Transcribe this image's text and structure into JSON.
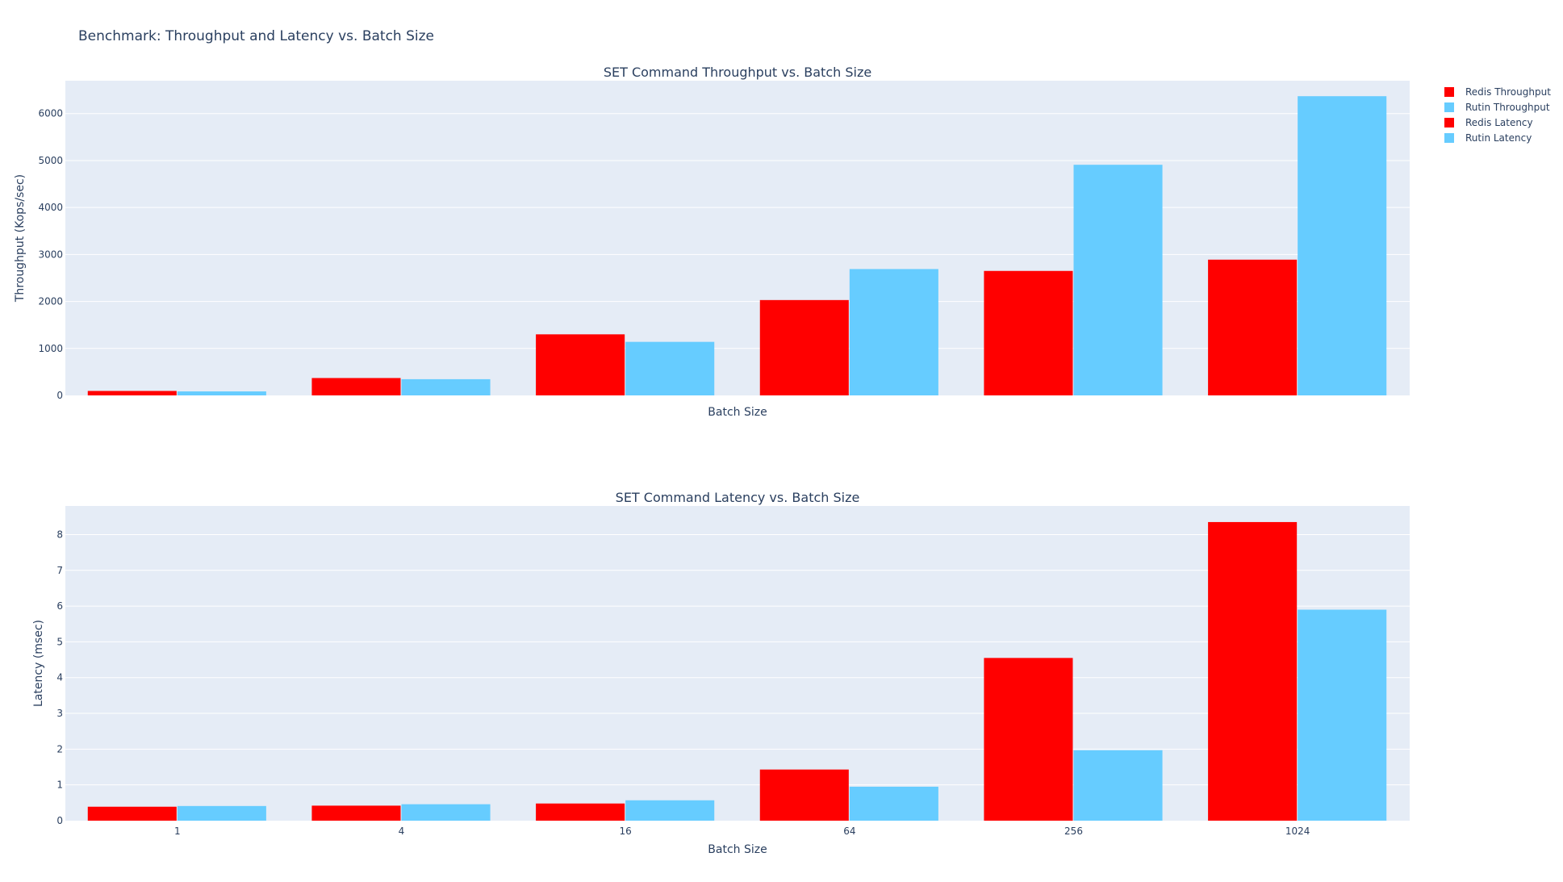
{
  "title": "Benchmark: Throughput and Latency vs. Batch Size",
  "legend": {
    "placement": "top-right",
    "items": [
      {
        "label": "Redis Throughput",
        "color": "#ff0000"
      },
      {
        "label": "Rutin Throughput",
        "color": "#66ccff"
      },
      {
        "label": "Redis Latency",
        "color": "#ff0000"
      },
      {
        "label": "Rutin Latency",
        "color": "#66ccff"
      }
    ]
  },
  "colors": {
    "plot_bg": "#e5ecf6",
    "grid": "#ffffff",
    "text": "#2a3f5f"
  },
  "chart_data": [
    {
      "type": "bar",
      "title": "SET Command Throughput vs. Batch Size",
      "xlabel": "Batch Size",
      "ylabel": "Throughput (Kops/sec)",
      "categories": [
        "1",
        "4",
        "16",
        "64",
        "256",
        "1024"
      ],
      "show_category_labels": false,
      "ylim": [
        0,
        6700
      ],
      "yticks": [
        0,
        1000,
        2000,
        3000,
        4000,
        5000,
        6000
      ],
      "grid": true,
      "series": [
        {
          "name": "Redis Throughput",
          "color": "#ff0000",
          "values": [
            95,
            370,
            1300,
            2030,
            2650,
            2890
          ]
        },
        {
          "name": "Rutin Throughput",
          "color": "#66ccff",
          "values": [
            85,
            345,
            1140,
            2690,
            4910,
            6370
          ]
        }
      ]
    },
    {
      "type": "bar",
      "title": "SET Command Latency vs. Batch Size",
      "xlabel": "Batch Size",
      "ylabel": "Latency (msec)",
      "categories": [
        "1",
        "4",
        "16",
        "64",
        "256",
        "1024"
      ],
      "show_category_labels": true,
      "ylim": [
        0,
        8.8
      ],
      "yticks": [
        0,
        1,
        2,
        3,
        4,
        5,
        6,
        7,
        8
      ],
      "grid": true,
      "series": [
        {
          "name": "Redis Latency",
          "color": "#ff0000",
          "values": [
            0.39,
            0.42,
            0.48,
            1.43,
            4.55,
            8.35
          ]
        },
        {
          "name": "Rutin Latency",
          "color": "#66ccff",
          "values": [
            0.41,
            0.46,
            0.57,
            0.95,
            1.97,
            5.9
          ]
        }
      ]
    }
  ]
}
